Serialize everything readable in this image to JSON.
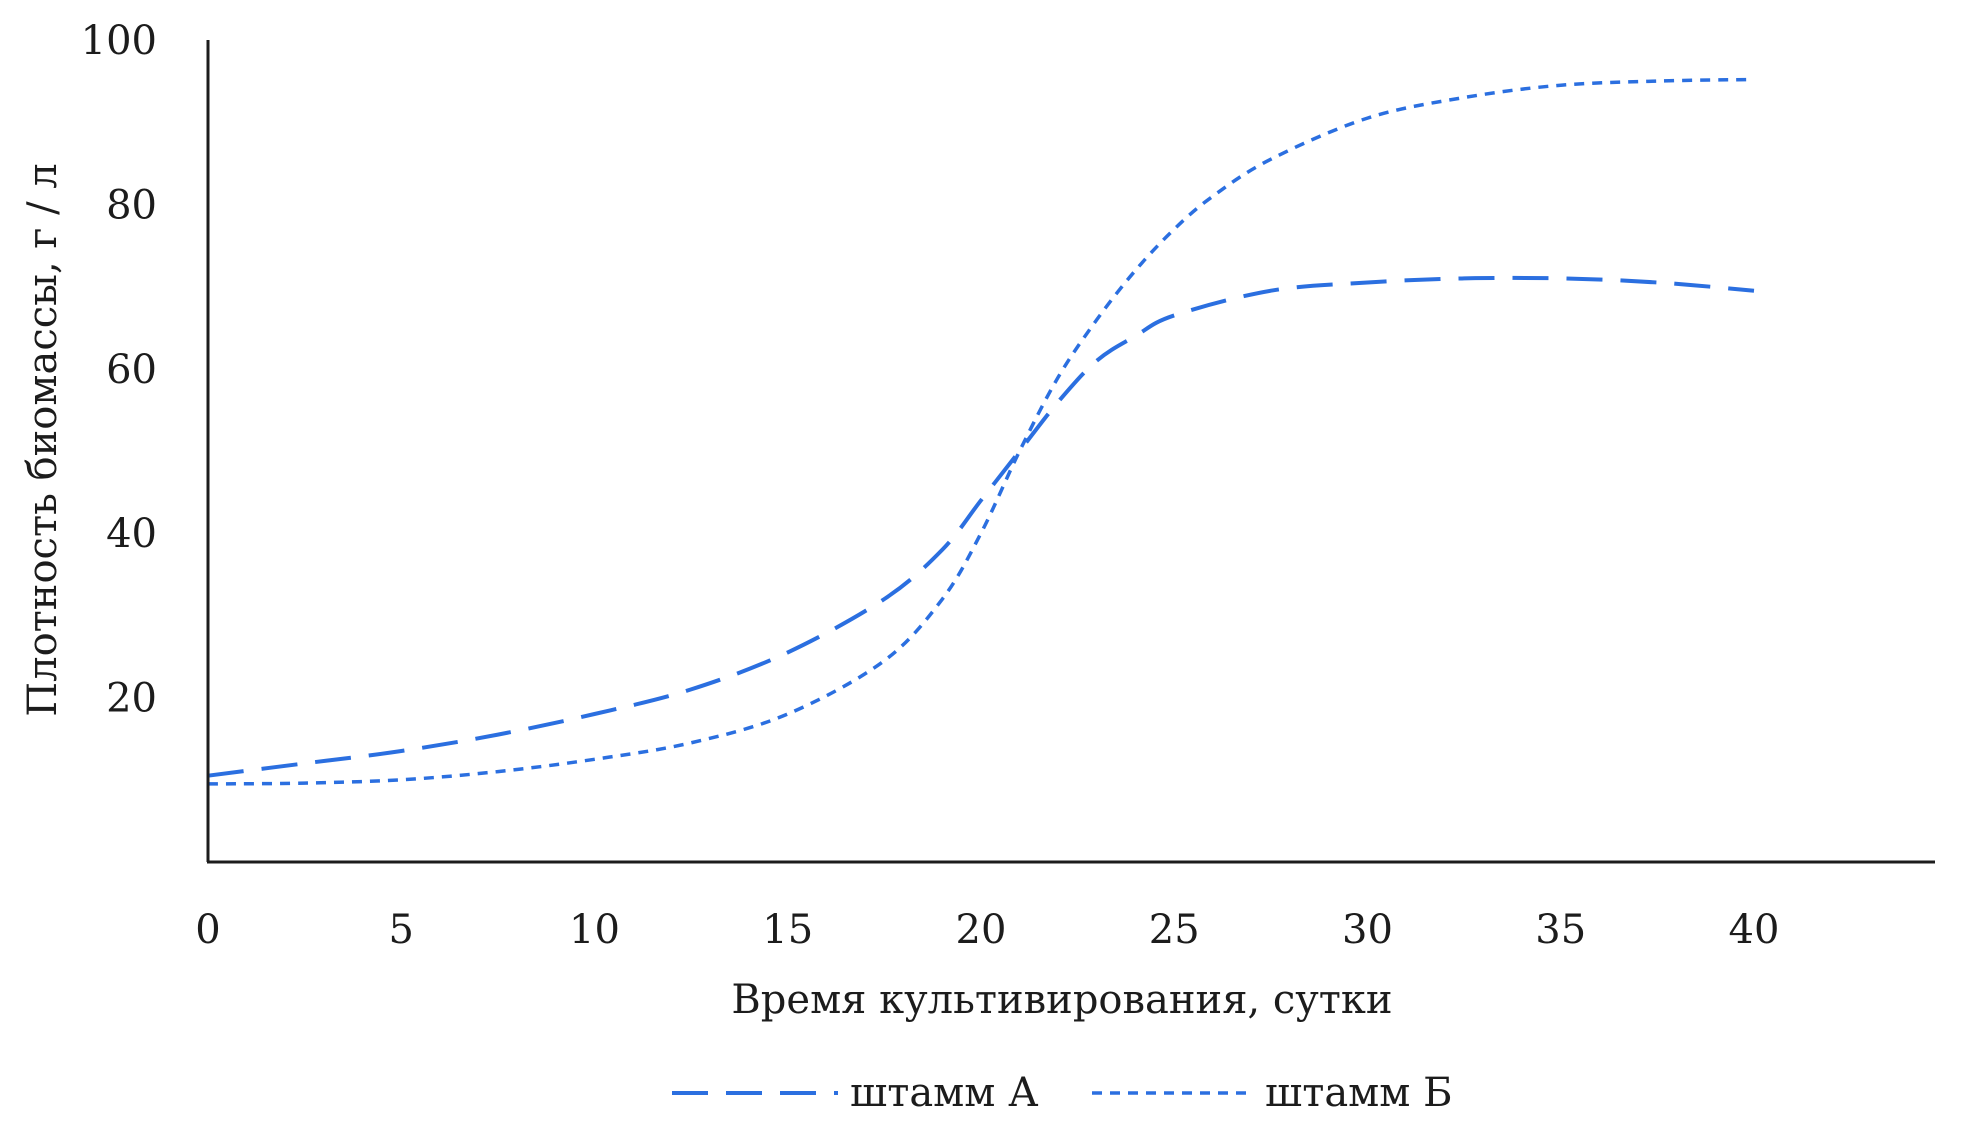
{
  "chart_data": {
    "type": "line",
    "title": "",
    "xlabel": "Время культивирования, сутки",
    "ylabel": "Плотность биомассы, г / л",
    "xlim": [
      0,
      45
    ],
    "ylim": [
      0,
      100
    ],
    "xticks": [
      0,
      5,
      10,
      15,
      20,
      25,
      30,
      35,
      40
    ],
    "yticks": [
      20,
      40,
      60,
      80,
      100
    ],
    "grid": false,
    "legend_position": "bottom-center",
    "series": [
      {
        "name": "штамм А",
        "style": "long-dash",
        "color": "#2b6fe0",
        "x": [
          0,
          2.5,
          5,
          7.5,
          10,
          12.5,
          15,
          17.5,
          19,
          20,
          21,
          22,
          23,
          24,
          25,
          27.5,
          30,
          32.5,
          35,
          37.5,
          40
        ],
        "y": [
          10.5,
          12,
          13.5,
          15.5,
          18,
          21,
          25.5,
          32,
          38,
          44,
          50,
          56,
          61,
          64,
          66.5,
          69.5,
          70.5,
          71,
          71,
          70.5,
          69.5
        ]
      },
      {
        "name": "штамм Б",
        "style": "short-dash",
        "color": "#2b6fe0",
        "x": [
          0,
          2.5,
          5,
          7.5,
          10,
          12.5,
          15,
          17.5,
          19,
          20,
          21,
          22,
          23,
          24,
          25,
          26,
          27.5,
          30,
          32.5,
          35,
          37.5,
          40
        ],
        "y": [
          9.5,
          9.6,
          10,
          11,
          12.5,
          14.5,
          18,
          24.5,
          32,
          40,
          50,
          59,
          66,
          72,
          77,
          81,
          85.5,
          90.5,
          93,
          94.5,
          95,
          95.2
        ]
      }
    ]
  }
}
